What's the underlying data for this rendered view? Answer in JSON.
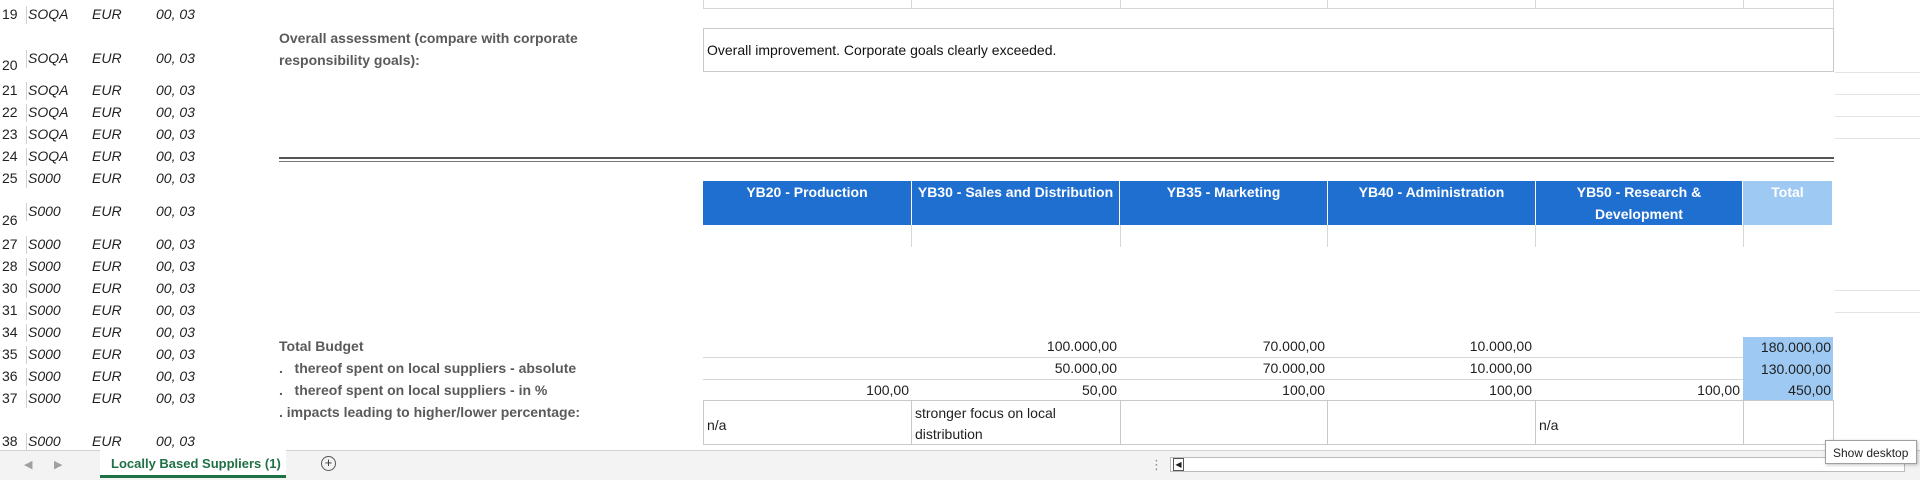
{
  "rows": [
    {
      "num": "19",
      "a": "SOQA",
      "b": "EUR",
      "c": "00, 03"
    },
    {
      "num": "20",
      "a": "SOQA",
      "b": "EUR",
      "c": "00, 03"
    },
    {
      "num": "21",
      "a": "SOQA",
      "b": "EUR",
      "c": "00, 03"
    },
    {
      "num": "22",
      "a": "SOQA",
      "b": "EUR",
      "c": "00, 03"
    },
    {
      "num": "23",
      "a": "SOQA",
      "b": "EUR",
      "c": "00, 03"
    },
    {
      "num": "24",
      "a": "SOQA",
      "b": "EUR",
      "c": "00, 03"
    },
    {
      "num": "25",
      "a": "S000",
      "b": "EUR",
      "c": "00, 03"
    },
    {
      "num": "26",
      "a": "S000",
      "b": "EUR",
      "c": "00, 03"
    },
    {
      "num": "27",
      "a": "S000",
      "b": "EUR",
      "c": "00, 03"
    },
    {
      "num": "28",
      "a": "S000",
      "b": "EUR",
      "c": "00, 03"
    },
    {
      "num": "30",
      "a": "S000",
      "b": "EUR",
      "c": "00, 03"
    },
    {
      "num": "31",
      "a": "S000",
      "b": "EUR",
      "c": "00, 03"
    },
    {
      "num": "34",
      "a": "S000",
      "b": "EUR",
      "c": "00, 03"
    },
    {
      "num": "35",
      "a": "S000",
      "b": "EUR",
      "c": "00, 03"
    },
    {
      "num": "36",
      "a": "S000",
      "b": "EUR",
      "c": "00, 03"
    },
    {
      "num": "37",
      "a": "S000",
      "b": "EUR",
      "c": "00, 03"
    },
    {
      "num": "38",
      "a": "S000",
      "b": "EUR",
      "c": "00, 03"
    }
  ],
  "assessment": {
    "label_line1": "Overall assessment (compare with corporate",
    "label_line2": "responsibility goals):",
    "value": "Overall improvement. Corporate goals clearly exceeded."
  },
  "headers": [
    {
      "line1": "YB20 - Production",
      "line2": ""
    },
    {
      "line1": "YB30 - Sales and Distribution",
      "line2": ""
    },
    {
      "line1": "YB35 - Marketing",
      "line2": ""
    },
    {
      "line1": "YB40 - Administration",
      "line2": ""
    },
    {
      "line1": "YB50 - Research &",
      "line2": "Development"
    },
    {
      "line1": "Total",
      "line2": ""
    }
  ],
  "budget": {
    "total_label": "Total Budget",
    "local_abs_label": ".   thereof spent on local suppliers - absolute",
    "local_pct_label": ".   thereof spent on local suppliers - in %",
    "impacts_label": ". impacts leading to higher/lower percentage:",
    "total_values": [
      "100.000,00",
      "70.000,00",
      "10.000,00"
    ],
    "total_sum": "180.000,00",
    "abs_values": [
      "50.000,00",
      "70.000,00",
      "10.000,00"
    ],
    "abs_sum": "130.000,00",
    "pct_values": [
      "100,00",
      "50,00",
      "100,00",
      "100,00",
      "100,00"
    ],
    "pct_sum": "450,00",
    "impacts": {
      "col1": "n/a",
      "col2_line1": "stronger focus on local",
      "col2_line2": "distribution",
      "col5": "n/a"
    }
  },
  "footer": {
    "sheet_tab": "Locally Based Suppliers (1)",
    "add_sheet": "+",
    "show_desktop": "Show desktop"
  }
}
